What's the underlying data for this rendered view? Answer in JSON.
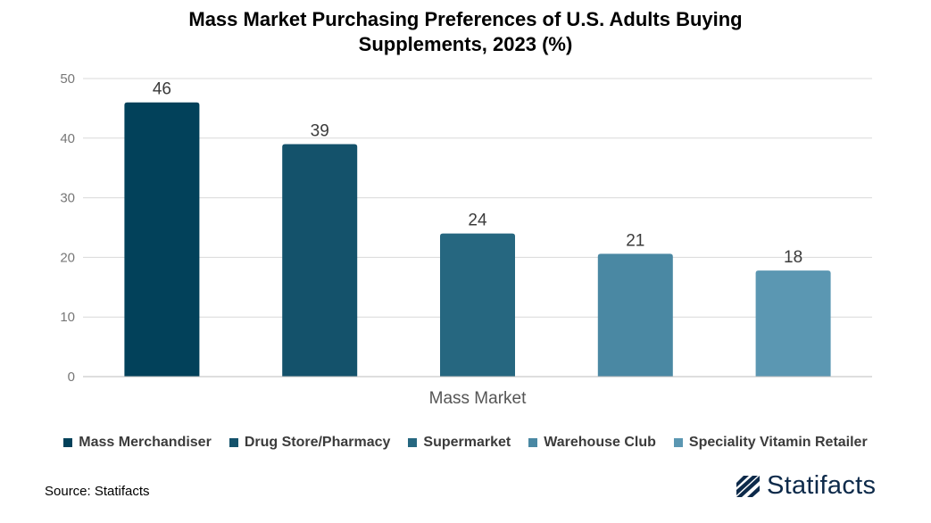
{
  "chart_data": {
    "type": "bar",
    "title_lines": [
      "Mass Market Purchasing Preferences of U.S. Adults Buying",
      "Supplements, 2023 (%)"
    ],
    "xlabel": "Mass Market",
    "ylabel": "",
    "ylim": [
      0,
      50
    ],
    "yticks": [
      "0",
      "10",
      "20",
      "30",
      "40",
      "50"
    ],
    "grid": true,
    "legend_position": "bottom",
    "series": [
      {
        "name": "Mass Merchandiser",
        "value": 46,
        "label": "46",
        "color": "#02415a"
      },
      {
        "name": "Drug Store/Pharmacy",
        "value": 39,
        "label": "39",
        "color": "#14526b"
      },
      {
        "name": "Supermarket",
        "value": 24,
        "label": "24",
        "color": "#266780"
      },
      {
        "name": "Warehouse Club",
        "value": 20.6,
        "label": "21",
        "color": "#4a88a3"
      },
      {
        "name": "Speciality Vitamin Retailer",
        "value": 17.8,
        "label": "18",
        "color": "#5b97b2"
      }
    ]
  },
  "footer": {
    "source": "Source: Statifacts",
    "brand": "Statifacts",
    "brand_icon": "statifacts-logo-icon"
  }
}
